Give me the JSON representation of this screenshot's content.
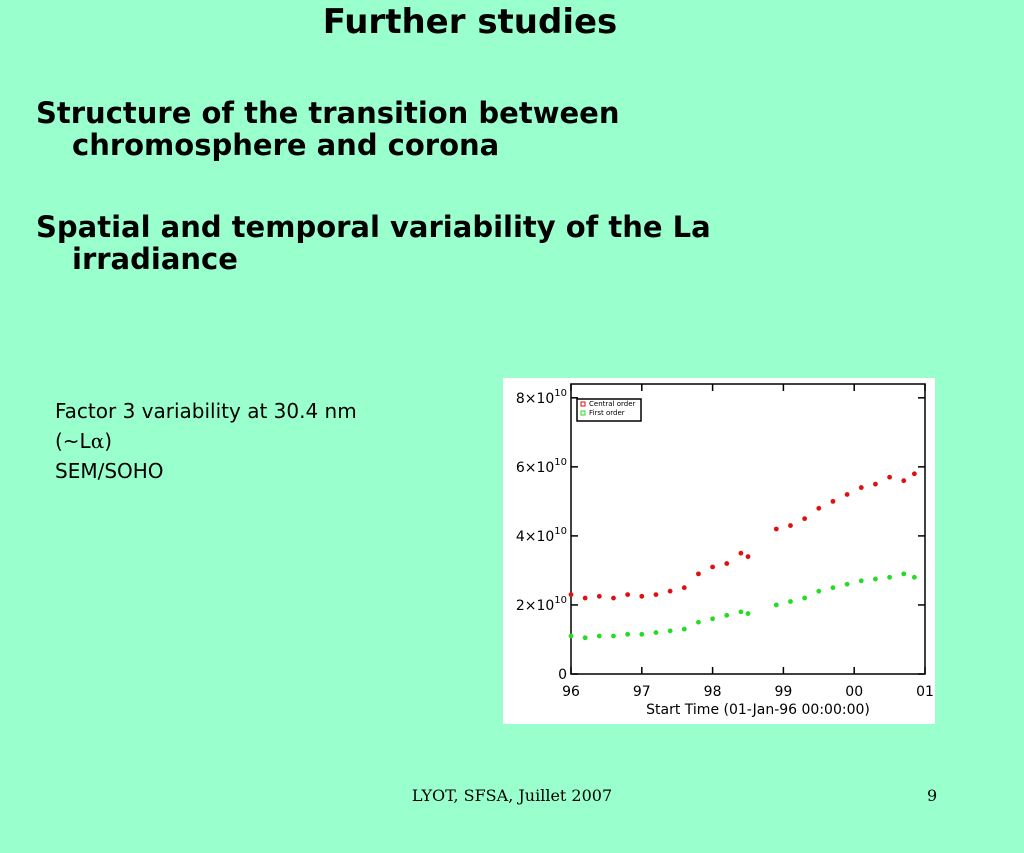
{
  "slide": {
    "title": "Further studies",
    "bullets": [
      {
        "line1": "Structure of the transition between",
        "line2": "chromosphere and corona"
      },
      {
        "line1": "Spatial and temporal variability of the La",
        "line2": "irradiance"
      }
    ],
    "note": {
      "line1": "Factor 3 variability at 30.4 nm",
      "line2_prefix": "(~L",
      "line2_symbol": "α",
      "line2_suffix": ")",
      "line3": "SEM/SOHO"
    },
    "footer": "LYOT, SFSA, Juillet 2007",
    "page_number": "9"
  },
  "chart_data": {
    "type": "scatter",
    "xlabel": "Start Time (01-Jan-96 00:00:00)",
    "x_tick_labels": [
      "96",
      "97",
      "98",
      "99",
      "00",
      "01"
    ],
    "x_ticks": [
      1996,
      1997,
      1998,
      1999,
      2000,
      2001
    ],
    "xlim": [
      1996,
      2001
    ],
    "ylim": [
      0,
      84000000000.0
    ],
    "y_ticks": [
      {
        "value": 0,
        "mantissa": "0",
        "exponent": ""
      },
      {
        "value": 20000000000.0,
        "mantissa": "2×10",
        "exponent": "10"
      },
      {
        "value": 40000000000.0,
        "mantissa": "4×10",
        "exponent": "10"
      },
      {
        "value": 60000000000.0,
        "mantissa": "6×10",
        "exponent": "10"
      },
      {
        "value": 80000000000.0,
        "mantissa": "8×10",
        "exponent": "10"
      }
    ],
    "legend_position": "top-left",
    "series": [
      {
        "name": "Central order",
        "color": "#e01010",
        "points": [
          [
            1996.0,
            23000000000.0
          ],
          [
            1996.2,
            22000000000.0
          ],
          [
            1996.4,
            22500000000.0
          ],
          [
            1996.6,
            22000000000.0
          ],
          [
            1996.8,
            23000000000.0
          ],
          [
            1997.0,
            22500000000.0
          ],
          [
            1997.2,
            23000000000.0
          ],
          [
            1997.4,
            24000000000.0
          ],
          [
            1997.6,
            25000000000.0
          ],
          [
            1997.8,
            29000000000.0
          ],
          [
            1998.0,
            31000000000.0
          ],
          [
            1998.2,
            32000000000.0
          ],
          [
            1998.4,
            35000000000.0
          ],
          [
            1998.5,
            34000000000.0
          ],
          [
            1998.9,
            42000000000.0
          ],
          [
            1999.1,
            43000000000.0
          ],
          [
            1999.3,
            45000000000.0
          ],
          [
            1999.5,
            48000000000.0
          ],
          [
            1999.7,
            50000000000.0
          ],
          [
            1999.9,
            52000000000.0
          ],
          [
            2000.1,
            54000000000.0
          ],
          [
            2000.3,
            55000000000.0
          ],
          [
            2000.5,
            57000000000.0
          ],
          [
            2000.7,
            56000000000.0
          ],
          [
            2000.85,
            58000000000.0
          ]
        ]
      },
      {
        "name": "First order",
        "color": "#22dd22",
        "points": [
          [
            1996.0,
            11000000000.0
          ],
          [
            1996.2,
            10500000000.0
          ],
          [
            1996.4,
            11000000000.0
          ],
          [
            1996.6,
            11000000000.0
          ],
          [
            1996.8,
            11500000000.0
          ],
          [
            1997.0,
            11500000000.0
          ],
          [
            1997.2,
            12000000000.0
          ],
          [
            1997.4,
            12500000000.0
          ],
          [
            1997.6,
            13000000000.0
          ],
          [
            1997.8,
            15000000000.0
          ],
          [
            1998.0,
            16000000000.0
          ],
          [
            1998.2,
            17000000000.0
          ],
          [
            1998.4,
            18000000000.0
          ],
          [
            1998.5,
            17500000000.0
          ],
          [
            1998.9,
            20000000000.0
          ],
          [
            1999.1,
            21000000000.0
          ],
          [
            1999.3,
            22000000000.0
          ],
          [
            1999.5,
            24000000000.0
          ],
          [
            1999.7,
            25000000000.0
          ],
          [
            1999.9,
            26000000000.0
          ],
          [
            2000.1,
            27000000000.0
          ],
          [
            2000.3,
            27500000000.0
          ],
          [
            2000.5,
            28000000000.0
          ],
          [
            2000.7,
            29000000000.0
          ],
          [
            2000.85,
            28000000000.0
          ]
        ]
      }
    ]
  }
}
